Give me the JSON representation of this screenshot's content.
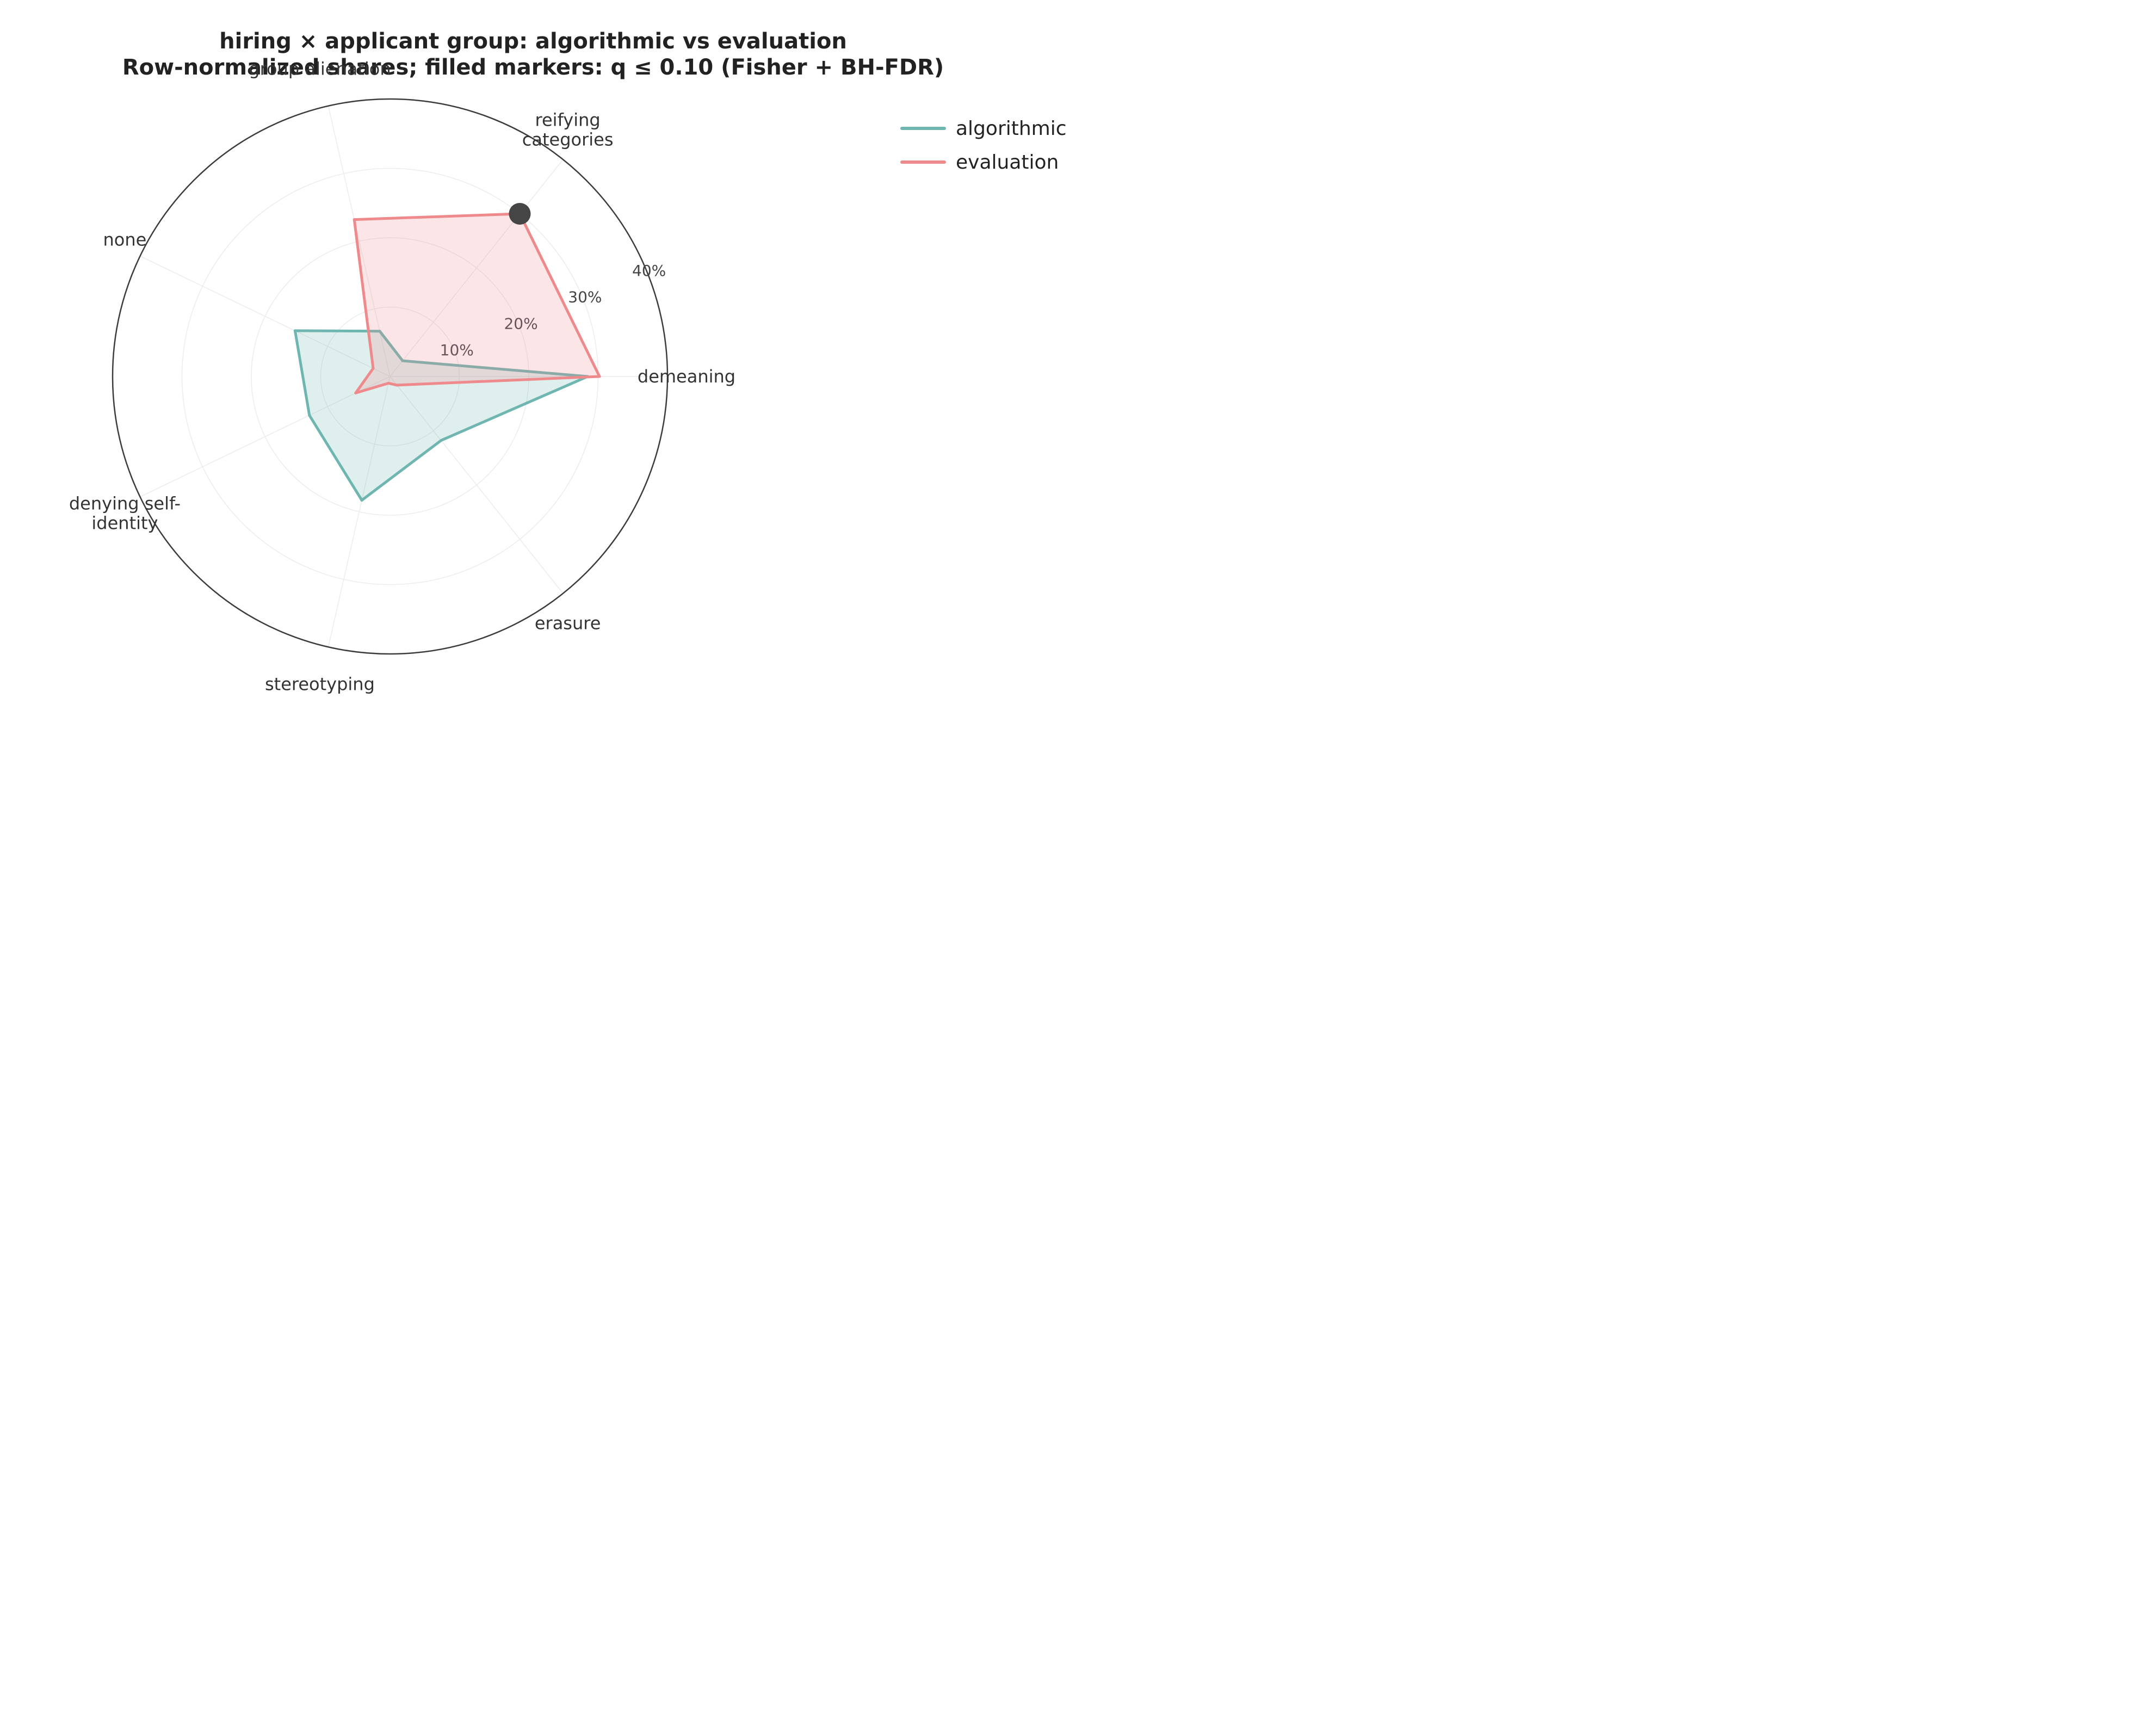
{
  "title_lines": [
    "hiring × applicant group: algorithmic vs evaluation",
    "Row-normalized shares; filled markers: q ≤ 0.10 (Fisher + BH-FDR)"
  ],
  "chart_data": {
    "type": "radar",
    "axes": [
      "demeaning",
      "reifying\ncategories",
      "group alienation",
      "none",
      "denying self-\nidentity",
      "stereotyping",
      "erasure"
    ],
    "radial_ticks": [
      10,
      20,
      30,
      40
    ],
    "radial_tick_labels": [
      "10%",
      "20%",
      "30%",
      "40%"
    ],
    "rlim": [
      0,
      40
    ],
    "grid": true,
    "legend_position": "top-right",
    "series": [
      {
        "name": "algorithmic",
        "color": "#6fb5b0",
        "values": [
          28.5,
          2.9,
          6.7,
          15.2,
          12.9,
          18.3,
          11.8
        ]
      },
      {
        "name": "evaluation",
        "color": "#ef8a8c",
        "values": [
          30.2,
          30.0,
          23.2,
          2.7,
          5.5,
          1.0,
          1.6
        ]
      }
    ],
    "significant_markers": [
      {
        "series": "evaluation",
        "axis_index": 1,
        "value": 30.0,
        "color": "#454545"
      }
    ]
  }
}
